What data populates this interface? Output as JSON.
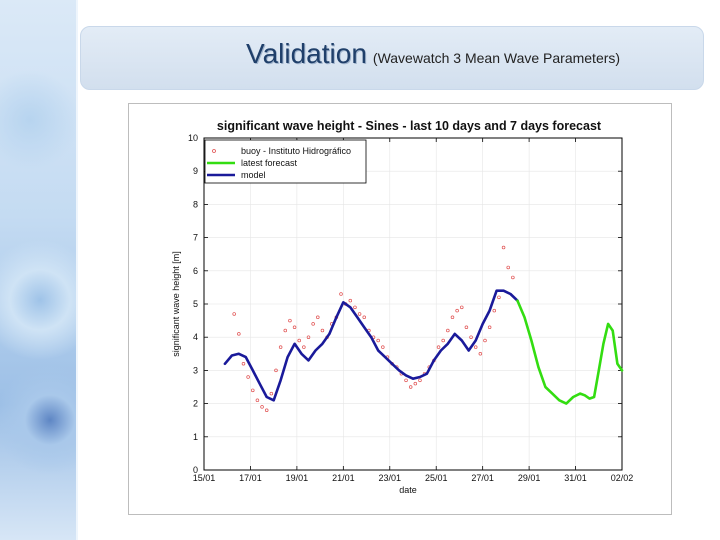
{
  "header": {
    "title": "Validation",
    "subtitle": "(Wavewatch 3 Mean Wave Parameters)"
  },
  "chart_data": {
    "type": "line",
    "title": "significant wave height - Sines - last 10 days and 7 days forecast",
    "xlabel": "date",
    "ylabel": "significant wave height [m]",
    "xlim": [
      0,
      18
    ],
    "ylim": [
      0,
      10
    ],
    "x_tick_labels": [
      "15/01",
      "17/01",
      "19/01",
      "21/01",
      "23/01",
      "25/01",
      "27/01",
      "29/01",
      "31/01",
      "02/02"
    ],
    "y_tick_labels": [
      "0",
      "1",
      "2",
      "3",
      "4",
      "5",
      "6",
      "7",
      "8",
      "9",
      "10"
    ],
    "legend": {
      "placement": "top-left",
      "entries": [
        "buoy - Instituto Hidrográfico",
        "latest forecast",
        "model"
      ]
    },
    "colors": {
      "buoy": "#e05050",
      "forecast": "#33dd11",
      "model": "#1a1a9a"
    },
    "series": [
      {
        "name": "model",
        "x": [
          0.9,
          1.2,
          1.5,
          1.8,
          2.1,
          2.4,
          2.7,
          3.0,
          3.3,
          3.6,
          3.9,
          4.2,
          4.5,
          4.8,
          5.1,
          5.4,
          5.7,
          6.0,
          6.3,
          6.6,
          6.9,
          7.2,
          7.5,
          7.8,
          8.1,
          8.4,
          8.7,
          9.0,
          9.3,
          9.6,
          9.9,
          10.2,
          10.5,
          10.8,
          11.1,
          11.4,
          11.7,
          12.0,
          12.3,
          12.6,
          12.9,
          13.2,
          13.5
        ],
        "values": [
          3.2,
          3.45,
          3.5,
          3.4,
          3.0,
          2.6,
          2.2,
          2.1,
          2.7,
          3.4,
          3.8,
          3.5,
          3.3,
          3.6,
          3.8,
          4.1,
          4.6,
          5.05,
          4.9,
          4.6,
          4.3,
          4.0,
          3.6,
          3.4,
          3.2,
          3.0,
          2.85,
          2.75,
          2.8,
          2.9,
          3.3,
          3.6,
          3.8,
          4.1,
          3.9,
          3.6,
          3.9,
          4.4,
          4.8,
          5.4,
          5.4,
          5.3,
          5.1
        ]
      },
      {
        "name": "latest forecast",
        "x": [
          13.5,
          13.8,
          14.1,
          14.4,
          14.7,
          15.0,
          15.3,
          15.6,
          15.9,
          16.2,
          16.4,
          16.6,
          16.8,
          17.0,
          17.2,
          17.4,
          17.6,
          17.8,
          18.0
        ],
        "values": [
          5.1,
          4.6,
          3.9,
          3.1,
          2.5,
          2.3,
          2.1,
          2.0,
          2.2,
          2.3,
          2.25,
          2.15,
          2.2,
          3.0,
          3.8,
          4.4,
          4.2,
          3.2,
          3.0
        ]
      }
    ],
    "scatter_series": [
      {
        "name": "buoy - Instituto Hidrográfico",
        "x": [
          1.3,
          1.5,
          1.7,
          1.9,
          2.1,
          2.3,
          2.5,
          2.7,
          2.9,
          3.1,
          3.3,
          3.5,
          3.7,
          3.9,
          4.1,
          4.3,
          4.5,
          4.7,
          4.9,
          5.1,
          5.3,
          5.5,
          5.7,
          5.9,
          6.1,
          6.3,
          6.5,
          6.7,
          6.9,
          7.1,
          7.3,
          7.5,
          7.7,
          7.9,
          8.1,
          8.3,
          8.5,
          8.7,
          8.9,
          9.1,
          9.3,
          9.5,
          9.7,
          9.9,
          10.1,
          10.3,
          10.5,
          10.7,
          10.9,
          11.1,
          11.3,
          11.5,
          11.7,
          11.9,
          12.1,
          12.3,
          12.5,
          12.7,
          12.9,
          13.1,
          13.3
        ],
        "values": [
          4.7,
          4.1,
          3.2,
          2.8,
          2.4,
          2.1,
          1.9,
          1.8,
          2.3,
          3.0,
          3.7,
          4.2,
          4.5,
          4.3,
          3.9,
          3.7,
          4.0,
          4.4,
          4.6,
          4.2,
          4.0,
          4.4,
          4.6,
          5.3,
          5.0,
          5.1,
          4.9,
          4.7,
          4.6,
          4.2,
          4.0,
          3.9,
          3.7,
          3.4,
          3.2,
          3.1,
          2.9,
          2.7,
          2.5,
          2.6,
          2.7,
          2.9,
          3.1,
          3.3,
          3.7,
          3.9,
          4.2,
          4.6,
          4.8,
          4.9,
          4.3,
          4.0,
          3.7,
          3.5,
          3.9,
          4.3,
          4.8,
          5.2,
          6.7,
          6.1,
          5.8
        ]
      }
    ]
  }
}
